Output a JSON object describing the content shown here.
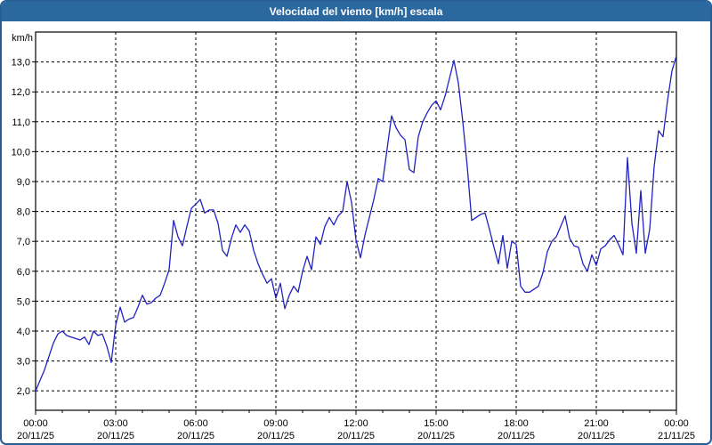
{
  "window": {
    "title": "Velocidad del viento [km/h] escala"
  },
  "colors": {
    "header_bg": "#2b689f",
    "header_text": "#ffffff",
    "frame_border": "#275e93",
    "line": "#2222c0",
    "grid": "#000000",
    "axis": "#000000",
    "text": "#000000",
    "plot_bg": "#ffffff"
  },
  "chart_data": {
    "type": "line",
    "title": "Velocidad del viento [km/h] escala",
    "ylabel": "km/h",
    "series_name": "Velocidad del viento",
    "grid": "dashed",
    "legend_position": "none",
    "xlim_hours": [
      0,
      24
    ],
    "ylim": [
      1.35,
      14.0
    ],
    "x_tick_hours": [
      0,
      3,
      6,
      9,
      12,
      15,
      18,
      21,
      24
    ],
    "x_tick_times": [
      "00:00",
      "03:00",
      "06:00",
      "09:00",
      "12:00",
      "15:00",
      "18:00",
      "21:00",
      "00:00"
    ],
    "x_tick_dates": [
      "20/11/25",
      "20/11/25",
      "20/11/25",
      "20/11/25",
      "20/11/25",
      "20/11/25",
      "20/11/25",
      "20/11/25",
      "21/11/25"
    ],
    "minor_tick_every_hours": 1,
    "y_tick_values": [
      2,
      3,
      4,
      5,
      6,
      7,
      8,
      9,
      10,
      11,
      12,
      13
    ],
    "y_tick_labels": [
      "2,0",
      "3,0",
      "4,0",
      "5,0",
      "6,0",
      "7,0",
      "8,0",
      "9,0",
      "10,0",
      "11,0",
      "12,0",
      "13,0"
    ],
    "interval_minutes": 10,
    "values_10min": [
      2.0,
      2.35,
      2.7,
      3.15,
      3.6,
      3.9,
      4.0,
      3.85,
      3.8,
      3.75,
      3.7,
      3.8,
      3.55,
      4.0,
      3.85,
      3.9,
      3.5,
      2.95,
      4.2,
      4.8,
      4.3,
      4.4,
      4.45,
      4.8,
      5.2,
      4.9,
      4.95,
      5.1,
      5.2,
      5.6,
      6.05,
      7.7,
      7.15,
      6.85,
      7.5,
      8.1,
      8.25,
      8.4,
      7.95,
      8.05,
      8.05,
      7.6,
      6.7,
      6.5,
      7.1,
      7.55,
      7.3,
      7.55,
      7.35,
      6.7,
      6.25,
      5.9,
      5.6,
      5.75,
      5.1,
      5.6,
      4.75,
      5.2,
      5.5,
      5.3,
      6.0,
      6.5,
      6.05,
      7.15,
      6.9,
      7.5,
      7.8,
      7.55,
      7.85,
      8.0,
      9.0,
      8.3,
      7.05,
      6.45,
      7.2,
      7.8,
      8.4,
      9.1,
      9.0,
      10.1,
      11.2,
      10.8,
      10.55,
      10.4,
      9.4,
      9.3,
      10.5,
      11.0,
      11.3,
      11.55,
      11.7,
      11.4,
      11.85,
      12.45,
      13.05,
      12.3,
      11.0,
      9.5,
      7.7,
      7.8,
      7.9,
      7.95,
      7.4,
      6.8,
      6.25,
      7.2,
      6.1,
      7.0,
      6.9,
      5.5,
      5.3,
      5.3,
      5.4,
      5.5,
      5.95,
      6.65,
      7.0,
      7.15,
      7.5,
      7.85,
      7.1,
      6.85,
      6.8,
      6.25,
      6.0,
      6.55,
      6.2,
      6.75,
      6.85,
      7.05,
      7.2,
      6.9,
      6.55,
      9.8,
      7.6,
      6.6,
      8.7,
      6.6,
      7.4,
      9.5,
      10.7,
      10.5,
      11.7,
      12.7,
      13.2
    ]
  }
}
